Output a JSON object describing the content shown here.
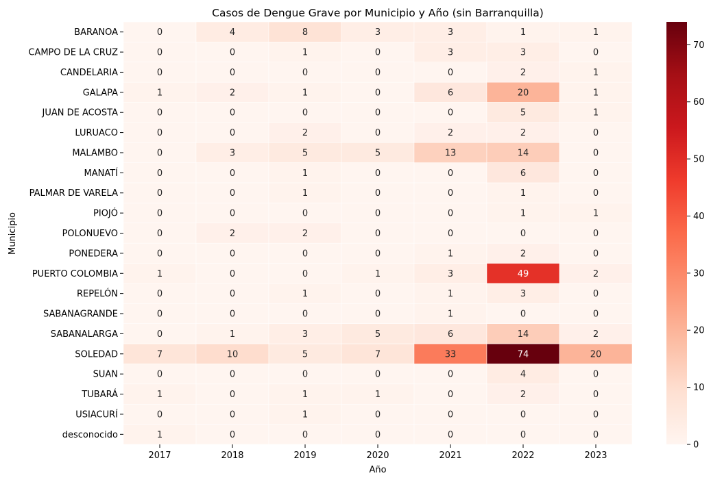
{
  "chart_data": {
    "type": "heatmap",
    "title": "Casos de Dengue Grave por Municipio y Año (sin Barranquilla)",
    "xlabel": "Año",
    "ylabel": "Municipio",
    "x": [
      "2017",
      "2018",
      "2019",
      "2020",
      "2021",
      "2022",
      "2023"
    ],
    "y": [
      "BARANOA",
      "CAMPO DE LA CRUZ",
      "CANDELARIA",
      "GALAPA",
      "JUAN DE ACOSTA",
      "LURUACO",
      "MALAMBO",
      "MANATÍ",
      "PALMAR DE VARELA",
      "PIOJÓ",
      "POLONUEVO",
      "PONEDERA",
      "PUERTO COLOMBIA",
      "REPELÓN",
      "SABANAGRANDE",
      "SABANALARGA",
      "SOLEDAD",
      "SUAN",
      "TUBARÁ",
      "USIACURÍ",
      "desconocido"
    ],
    "values": [
      [
        0,
        4,
        8,
        3,
        3,
        1,
        1
      ],
      [
        0,
        0,
        1,
        0,
        3,
        3,
        0
      ],
      [
        0,
        0,
        0,
        0,
        0,
        2,
        1
      ],
      [
        1,
        2,
        1,
        0,
        6,
        20,
        1
      ],
      [
        0,
        0,
        0,
        0,
        0,
        5,
        1
      ],
      [
        0,
        0,
        2,
        0,
        2,
        2,
        0
      ],
      [
        0,
        3,
        5,
        5,
        13,
        14,
        0
      ],
      [
        0,
        0,
        1,
        0,
        0,
        6,
        0
      ],
      [
        0,
        0,
        1,
        0,
        0,
        1,
        0
      ],
      [
        0,
        0,
        0,
        0,
        0,
        1,
        1
      ],
      [
        0,
        2,
        2,
        0,
        0,
        0,
        0
      ],
      [
        0,
        0,
        0,
        0,
        1,
        2,
        0
      ],
      [
        1,
        0,
        0,
        1,
        3,
        49,
        2
      ],
      [
        0,
        0,
        1,
        0,
        1,
        3,
        0
      ],
      [
        0,
        0,
        0,
        0,
        1,
        0,
        0
      ],
      [
        0,
        1,
        3,
        5,
        6,
        14,
        2
      ],
      [
        7,
        10,
        5,
        7,
        33,
        74,
        20
      ],
      [
        0,
        0,
        0,
        0,
        0,
        4,
        0
      ],
      [
        1,
        0,
        1,
        1,
        0,
        2,
        0
      ],
      [
        0,
        0,
        1,
        0,
        0,
        0,
        0
      ],
      [
        1,
        0,
        0,
        0,
        0,
        0,
        0
      ]
    ],
    "vmin": 0,
    "vmax": 74,
    "colormap": "Reds",
    "colorbar_ticks": [
      0,
      10,
      20,
      30,
      40,
      50,
      60,
      70
    ],
    "annotated": true
  }
}
